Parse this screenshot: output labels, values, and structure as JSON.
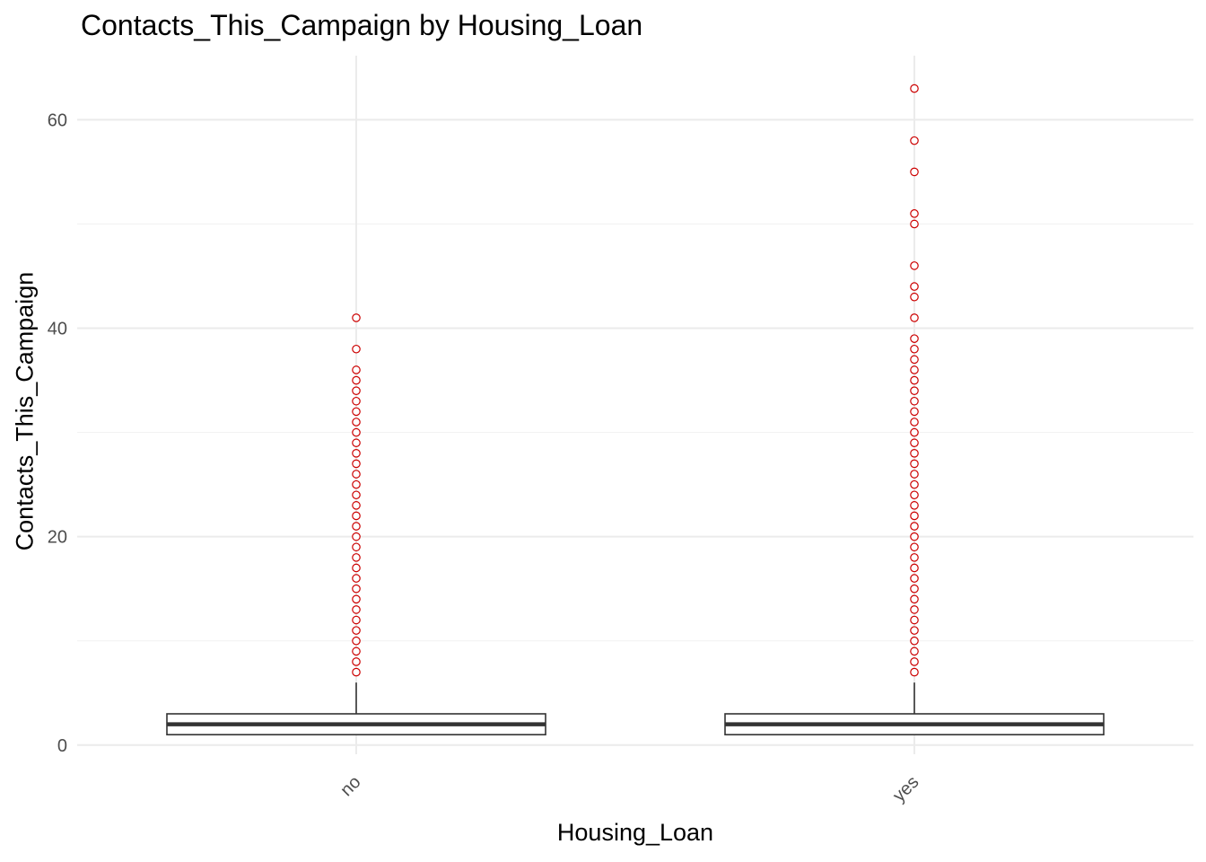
{
  "chart_data": {
    "type": "boxplot",
    "title": "Contacts_This_Campaign by Housing_Loan",
    "xlabel": "Housing_Loan",
    "ylabel": "Contacts_This_Campaign",
    "categories": [
      "no",
      "yes"
    ],
    "ylim": [
      -1.5,
      66
    ],
    "y_ticks": [
      0,
      20,
      40,
      60
    ],
    "grid": true,
    "boxes": [
      {
        "category": "no",
        "min": 1,
        "q1": 1,
        "median": 2,
        "q3": 3,
        "whisker_high": 6,
        "outliers": [
          7,
          8,
          9,
          10,
          11,
          12,
          13,
          14,
          15,
          16,
          17,
          18,
          19,
          20,
          21,
          22,
          23,
          24,
          25,
          26,
          27,
          28,
          29,
          30,
          31,
          32,
          33,
          34,
          35,
          36,
          38,
          41
        ]
      },
      {
        "category": "yes",
        "min": 1,
        "q1": 1,
        "median": 2,
        "q3": 3,
        "whisker_high": 6,
        "outliers": [
          7,
          8,
          9,
          10,
          11,
          12,
          13,
          14,
          15,
          16,
          17,
          18,
          19,
          20,
          21,
          22,
          23,
          24,
          25,
          26,
          27,
          28,
          29,
          30,
          31,
          32,
          33,
          34,
          35,
          36,
          37,
          38,
          39,
          41,
          43,
          44,
          46,
          50,
          51,
          55,
          58,
          63
        ]
      }
    ],
    "colors": {
      "outlier": "#cc0000",
      "box": "#333333",
      "grid": "#ebebeb"
    }
  }
}
